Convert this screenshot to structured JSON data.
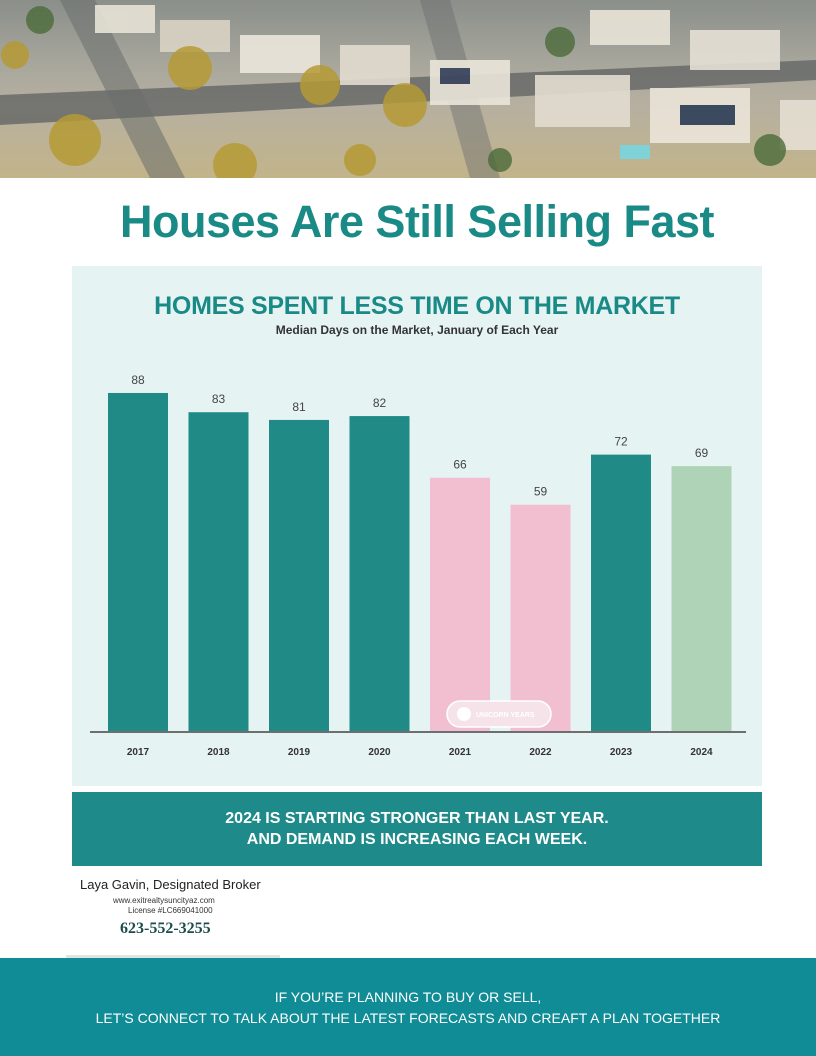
{
  "headline": "Houses Are Still Selling Fast",
  "chart_data": {
    "type": "bar",
    "title": "HOMES SPENT LESS TIME ON THE MARKET",
    "subtitle": "Median Days on the Market, January of Each Year",
    "categories": [
      "2017",
      "2018",
      "2019",
      "2020",
      "2021",
      "2022",
      "2023",
      "2024"
    ],
    "values": [
      88,
      83,
      81,
      82,
      66,
      59,
      72,
      69
    ],
    "bar_colors": [
      "#1f8a86",
      "#1f8a86",
      "#1f8a86",
      "#1f8a86",
      "#f2bfd0",
      "#f2bfd0",
      "#1f8a86",
      "#afd3b6"
    ],
    "ylim": [
      0,
      95
    ],
    "grid": false,
    "data_labels": true,
    "watermark": "UNICORN YEARS"
  },
  "banner": {
    "line1": "2024 IS STARTING STRONGER THAN LAST YEAR.",
    "line2": "AND DEMAND IS INCREASING EACH WEEK."
  },
  "contact": {
    "broker": "Laya Gavin, Designated Broker",
    "website": "www.exitrealtysuncityaz.com",
    "license": "License #LC669041000",
    "phone": "623-552-3255"
  },
  "footer": {
    "line1": "IF YOU’RE PLANNING TO BUY OR SELL,",
    "line2": "LET’S CONNECT TO TALK ABOUT THE LATEST FORECASTS AND CREAFT A PLAN TOGETHER"
  },
  "colors": {
    "accent": "#1a8a86",
    "panel": "#e6f3f3",
    "footer": "#0f8c95"
  }
}
